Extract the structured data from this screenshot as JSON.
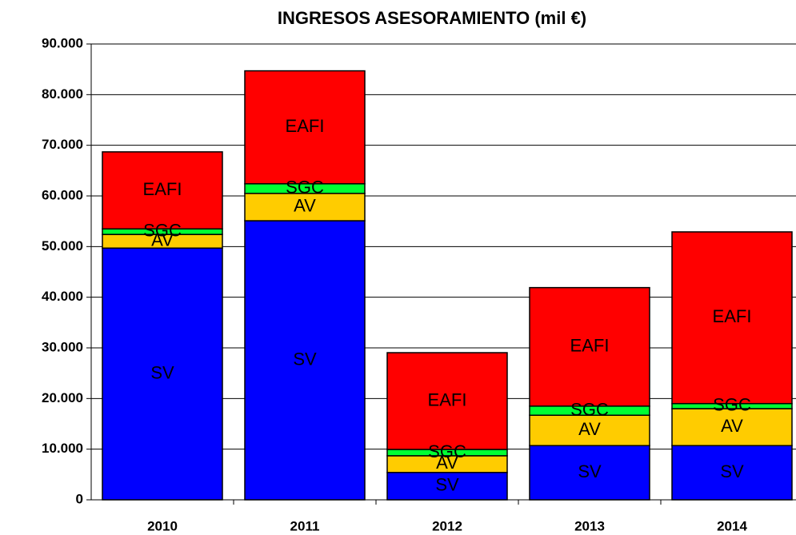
{
  "chart_data": {
    "type": "stacked_bar",
    "title": "INGRESOS ASESORAMIENTO (mil €)",
    "categories": [
      "2010",
      "2011",
      "2012",
      "2013",
      "2014"
    ],
    "series": [
      {
        "name": "SV",
        "color": "#0000ff",
        "values": [
          49700,
          55100,
          5400,
          10700,
          10700
        ]
      },
      {
        "name": "AV",
        "color": "#ffcc00",
        "values": [
          2700,
          5400,
          3300,
          6000,
          7300
        ]
      },
      {
        "name": "SGC",
        "color": "#00ff33",
        "values": [
          1100,
          1900,
          1250,
          1800,
          1000
        ]
      },
      {
        "name": "EAFI",
        "color": "#ff0000",
        "values": [
          15200,
          22300,
          19100,
          23400,
          33900
        ]
      }
    ],
    "ylim": [
      0,
      90000
    ],
    "yticks": [
      0,
      {
        "value": 10000,
        "label": "10.000"
      },
      {
        "value": 20000,
        "label": "20.000"
      },
      {
        "value": 30000,
        "label": "30.000"
      },
      {
        "value": 40000,
        "label": "40.000"
      },
      {
        "value": 50000,
        "label": "50.000"
      },
      {
        "value": 60000,
        "label": "60.000"
      },
      {
        "value": 70000,
        "label": "70.000"
      },
      {
        "value": 80000,
        "label": "80.000"
      },
      {
        "value": 90000,
        "label": "90.000"
      }
    ],
    "grid": true
  }
}
